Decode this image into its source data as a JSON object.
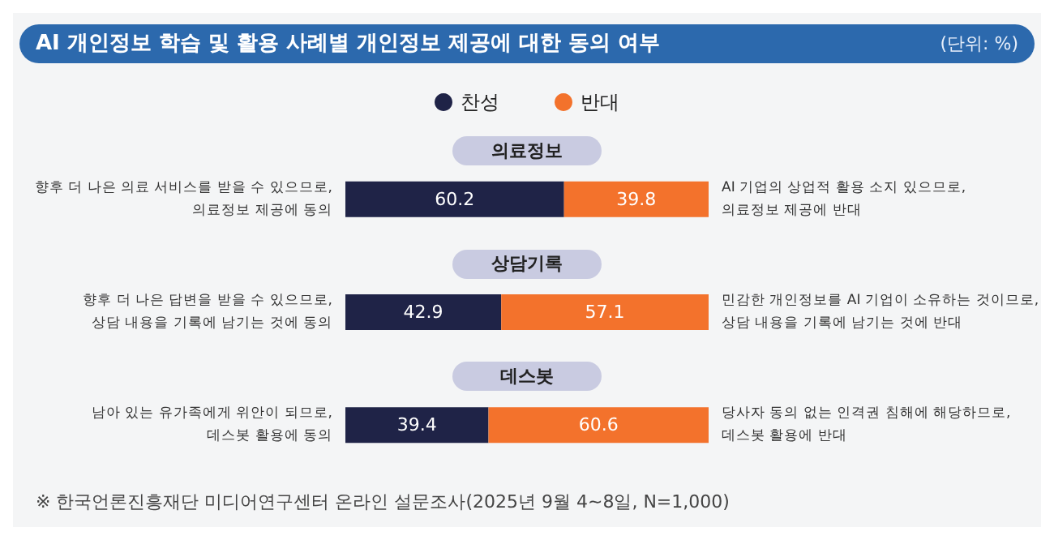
{
  "chart_data": {
    "type": "bar",
    "orientation": "horizontal",
    "stacked": true,
    "title": "AI 개인정보 학습 및 활용 사례별 개인정보 제공에 대한 동의 여부",
    "subtitle": "(단위: %)",
    "categories": [
      "의료정보",
      "상담기록",
      "데스봇"
    ],
    "series": [
      {
        "name": "찬성",
        "color": "#1f2347",
        "values": [
          60.2,
          42.9,
          39.4
        ]
      },
      {
        "name": "반대",
        "color": "#f3722c",
        "values": [
          39.8,
          57.1,
          60.6
        ]
      }
    ],
    "xlim": [
      0,
      100
    ],
    "data_labels": true,
    "legend": "top",
    "annotations": [
      "향후 더 나은 의료 서비스를 받을 수 있으므로,\n의료정보 제공에 동의",
      "AI 기업의 상업적 활용 소지 있으므로,\n의료정보 제공에 반대",
      "향후 더 나은 답변을 받을 수 있으므로,\n상담 내용을 기록에 남기는 것에 동의",
      "민감한 개인정보를 AI 기업이 소유하는 것이므로,\n상담 내용을 기록에 남기는 것에 반대",
      "남아 있는 유가족에게 위안이 되므로,\n데스봇 활용에 동의",
      "당사자 동의 없는 인격권 침해에 해당하므로,\n데스봇 활용에 반대",
      "※ 한국언론진흥재단 미디어연구센터 온라인 설문조사(2025년 9월 4~8일, N=1,000)"
    ]
  }
}
